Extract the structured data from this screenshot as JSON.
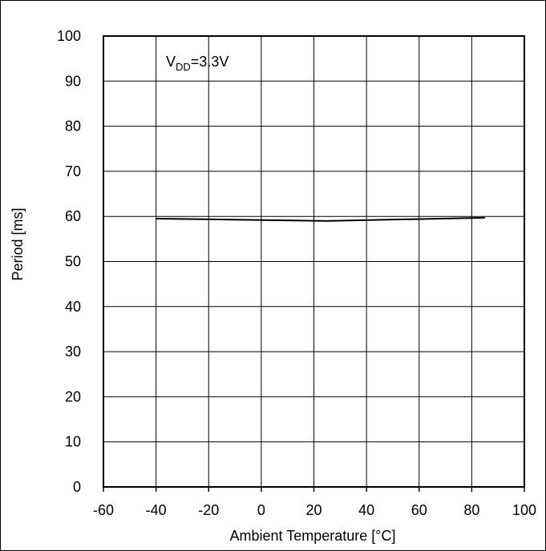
{
  "chart_data": {
    "type": "line",
    "title": "",
    "xlabel": "Ambient Temperature [°C]",
    "ylabel": "Period [ms]",
    "xlim": [
      -60,
      100
    ],
    "ylim": [
      0,
      100
    ],
    "xticks": [
      -60,
      -40,
      -20,
      0,
      20,
      40,
      60,
      80,
      100
    ],
    "yticks": [
      0,
      10,
      20,
      30,
      40,
      50,
      60,
      70,
      80,
      90,
      100
    ],
    "grid": true,
    "annotation": {
      "main": "V",
      "subscript": "DD",
      "rest": "=3.3V"
    },
    "series": [
      {
        "x": [
          -40,
          25,
          85
        ],
        "y": [
          59.5,
          59.0,
          59.7
        ]
      }
    ]
  }
}
